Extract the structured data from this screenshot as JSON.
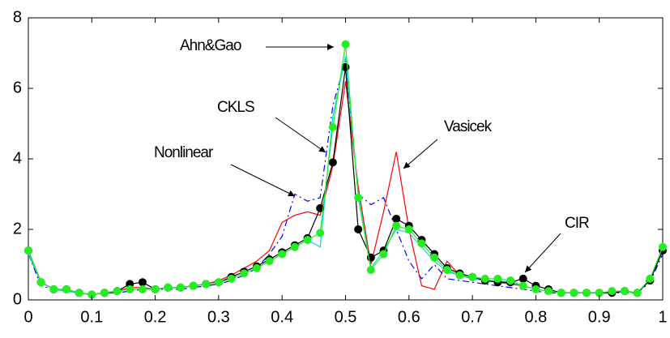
{
  "chart_data": {
    "type": "line",
    "x": [
      0,
      0.02,
      0.04,
      0.06,
      0.08,
      0.1,
      0.12,
      0.14,
      0.16,
      0.18,
      0.2,
      0.22,
      0.24,
      0.26,
      0.28,
      0.3,
      0.32,
      0.34,
      0.36,
      0.38,
      0.4,
      0.42,
      0.44,
      0.46,
      0.48,
      0.5,
      0.52,
      0.54,
      0.56,
      0.58,
      0.6,
      0.62,
      0.64,
      0.66,
      0.68,
      0.7,
      0.72,
      0.74,
      0.76,
      0.78,
      0.8,
      0.82,
      0.84,
      0.86,
      0.88,
      0.9,
      0.92,
      0.94,
      0.96,
      0.98,
      1
    ],
    "series": [
      {
        "name": "Vasicek",
        "color": "#ff0000",
        "line_style": "solid",
        "marker": "none",
        "values": [
          1.3,
          0.5,
          0.3,
          0.25,
          0.2,
          0.15,
          0.2,
          0.25,
          0.35,
          0.35,
          0.3,
          0.35,
          0.35,
          0.4,
          0.45,
          0.55,
          0.7,
          0.9,
          1.1,
          1.4,
          2.2,
          2.4,
          2.5,
          2.4,
          3.8,
          6.2,
          3.2,
          1.0,
          2.5,
          4.2,
          2.0,
          0.4,
          0.3,
          1.1,
          0.7,
          0.6,
          0.55,
          0.5,
          0.45,
          0.4,
          0.3,
          0.25,
          0.2,
          0.2,
          0.2,
          0.2,
          0.2,
          0.25,
          0.2,
          0.6,
          1.4
        ]
      },
      {
        "name": "Nonlinear",
        "color": "#0000ff",
        "line_style": "dashdot",
        "marker": "none",
        "values": [
          1.3,
          0.4,
          0.3,
          0.25,
          0.2,
          0.15,
          0.2,
          0.2,
          0.25,
          0.3,
          0.3,
          0.3,
          0.3,
          0.35,
          0.4,
          0.45,
          0.55,
          0.7,
          0.9,
          1.3,
          1.8,
          3.0,
          2.8,
          2.9,
          5.5,
          6.8,
          3.0,
          2.7,
          2.9,
          2.0,
          1.1,
          0.6,
          1.0,
          0.6,
          0.55,
          0.5,
          0.45,
          0.4,
          0.35,
          0.3,
          0.25,
          0.2,
          0.2,
          0.2,
          0.2,
          0.2,
          0.2,
          0.2,
          0.2,
          0.5,
          1.3
        ]
      },
      {
        "name": "CIR",
        "color": "#00dddd",
        "line_style": "solid",
        "marker": "none",
        "values": [
          1.3,
          0.5,
          0.3,
          0.25,
          0.2,
          0.15,
          0.2,
          0.25,
          0.3,
          0.3,
          0.3,
          0.35,
          0.35,
          0.4,
          0.45,
          0.5,
          0.6,
          0.75,
          0.9,
          1.1,
          1.3,
          1.5,
          1.7,
          1.5,
          5.2,
          6.9,
          3.0,
          0.9,
          1.4,
          2.0,
          1.9,
          1.5,
          1.1,
          0.8,
          0.7,
          0.6,
          0.55,
          0.55,
          0.5,
          0.4,
          0.3,
          0.25,
          0.2,
          0.2,
          0.2,
          0.2,
          0.25,
          0.25,
          0.2,
          0.6,
          1.4
        ]
      },
      {
        "name": "CKLS",
        "color": "#000000",
        "line_style": "solid",
        "marker": "circle",
        "values": [
          1.4,
          0.5,
          0.3,
          0.3,
          0.2,
          0.15,
          0.2,
          0.25,
          0.45,
          0.5,
          0.3,
          0.35,
          0.35,
          0.4,
          0.45,
          0.5,
          0.65,
          0.8,
          0.95,
          1.15,
          1.35,
          1.55,
          1.75,
          2.6,
          3.9,
          6.6,
          2.0,
          1.2,
          1.4,
          2.3,
          2.1,
          1.7,
          1.3,
          0.9,
          0.75,
          0.65,
          0.55,
          0.5,
          0.5,
          0.6,
          0.4,
          0.3,
          0.2,
          0.2,
          0.2,
          0.2,
          0.2,
          0.25,
          0.2,
          0.55,
          1.4
        ]
      },
      {
        "name": "Ahn&Gao",
        "color": "#22ee22",
        "line_style": "solid",
        "marker": "circle",
        "values": [
          1.4,
          0.5,
          0.3,
          0.3,
          0.2,
          0.15,
          0.2,
          0.25,
          0.3,
          0.3,
          0.3,
          0.35,
          0.35,
          0.4,
          0.45,
          0.5,
          0.6,
          0.75,
          0.9,
          1.1,
          1.3,
          1.5,
          1.7,
          1.9,
          4.9,
          7.25,
          2.9,
          0.85,
          1.3,
          2.1,
          2.0,
          1.6,
          1.2,
          0.85,
          0.7,
          0.65,
          0.6,
          0.6,
          0.55,
          0.4,
          0.3,
          0.25,
          0.2,
          0.2,
          0.2,
          0.2,
          0.25,
          0.25,
          0.2,
          0.6,
          1.5
        ]
      }
    ],
    "xlim": [
      0,
      1
    ],
    "xticks": [
      0,
      0.1,
      0.2,
      0.3,
      0.4,
      0.5,
      0.6,
      0.7,
      0.8,
      0.9,
      1
    ],
    "ylim": [
      0,
      8
    ],
    "yticks": [
      0,
      2,
      4,
      6,
      8
    ],
    "grid": false
  }
}
